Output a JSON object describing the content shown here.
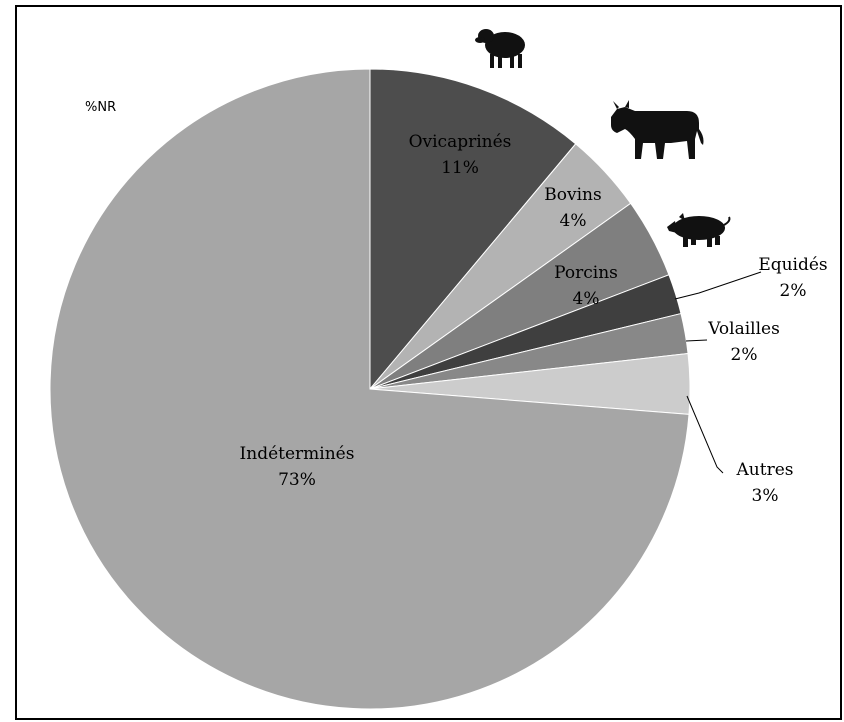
{
  "chart_data": {
    "type": "pie",
    "title": "%NR",
    "slices": [
      {
        "label": "Ovicaprinés",
        "value": 11,
        "value_label": "11%",
        "color": "#4d4d4d"
      },
      {
        "label": "Bovins",
        "value": 4,
        "value_label": "4%",
        "color": "#b3b3b3"
      },
      {
        "label": "Porcins",
        "value": 4,
        "value_label": "4%",
        "color": "#7f7f7f"
      },
      {
        "label": "Equidés",
        "value": 2,
        "value_label": "2%",
        "color": "#3f3f3f"
      },
      {
        "label": "Volailles",
        "value": 2,
        "value_label": "2%",
        "color": "#888888"
      },
      {
        "label": "Autres",
        "value": 3,
        "value_label": "3%",
        "color": "#cccccc"
      },
      {
        "label": "Indéterminés",
        "value": 73,
        "value_label": "73%",
        "color": "#a6a6a6"
      }
    ],
    "icons": [
      "sheep-icon",
      "cow-icon",
      "pig-icon"
    ]
  }
}
